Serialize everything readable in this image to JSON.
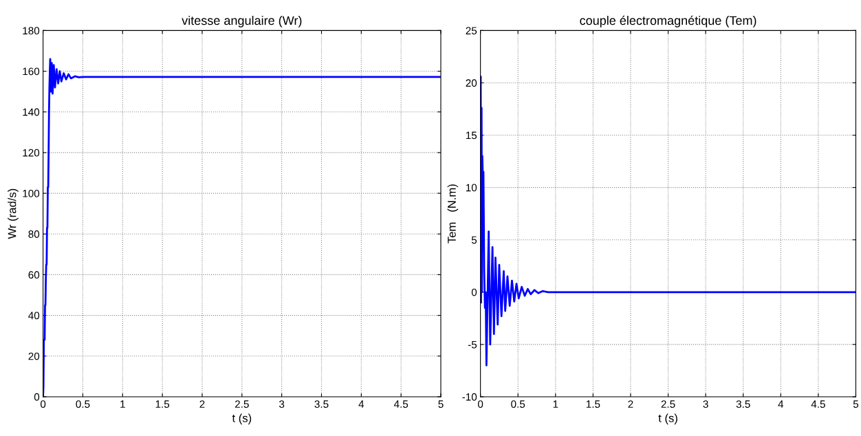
{
  "chart_data": [
    {
      "type": "line",
      "title": "vitesse angulaire (Wr)",
      "xlabel": "t (s)",
      "ylabel": "Wr (rad/s)",
      "xlim": [
        0,
        5
      ],
      "xticks": [
        0,
        0.5,
        1,
        1.5,
        2,
        2.5,
        3,
        3.5,
        4,
        4.5,
        5
      ],
      "ylim": [
        0,
        180
      ],
      "yticks": [
        0,
        20,
        40,
        60,
        80,
        100,
        120,
        140,
        160,
        180
      ],
      "grid": true,
      "legend": false,
      "series": [
        {
          "color": "#0000ff",
          "x": [
            0,
            0.005,
            0.01,
            0.02,
            0.025,
            0.03,
            0.035,
            0.04,
            0.045,
            0.05,
            0.055,
            0.06,
            0.065,
            0.07,
            0.075,
            0.08,
            0.085,
            0.09,
            0.1,
            0.11,
            0.12,
            0.135,
            0.15,
            0.17,
            0.19,
            0.21,
            0.23,
            0.26,
            0.29,
            0.32,
            0.35,
            0.4,
            0.45,
            0.5,
            5
          ],
          "values": [
            0,
            5,
            28,
            28,
            45,
            45,
            58,
            65,
            65,
            83,
            83,
            103,
            103,
            120,
            140,
            152,
            160,
            166,
            150,
            164,
            149,
            163,
            152,
            161,
            154,
            160,
            155,
            159,
            156,
            158.5,
            156.5,
            157.5,
            157,
            157.2,
            157.2
          ]
        }
      ]
    },
    {
      "type": "line",
      "title": "couple électromagnétique (Tem)",
      "xlabel": "t (s)",
      "ylabel": "Tem   (N.m)",
      "xlim": [
        0,
        5
      ],
      "xticks": [
        0,
        0.5,
        1,
        1.5,
        2,
        2.5,
        3,
        3.5,
        4,
        4.5,
        5
      ],
      "ylim": [
        -10,
        25
      ],
      "yticks": [
        -10,
        -5,
        0,
        5,
        10,
        15,
        20,
        25
      ],
      "grid": true,
      "legend": false,
      "series": [
        {
          "color": "#0000ff",
          "x": [
            0,
            0.004,
            0.008,
            0.015,
            0.02,
            0.025,
            0.03,
            0.04,
            0.05,
            0.06,
            0.07,
            0.08,
            0.11,
            0.13,
            0.16,
            0.18,
            0.2,
            0.23,
            0.25,
            0.28,
            0.31,
            0.33,
            0.36,
            0.39,
            0.42,
            0.45,
            0.48,
            0.51,
            0.55,
            0.59,
            0.63,
            0.67,
            0.72,
            0.77,
            0.83,
            0.9,
            5
          ],
          "values": [
            0,
            20.6,
            -1,
            17.6,
            0,
            13,
            11.5,
            11.5,
            2,
            -1.5,
            0,
            -7,
            5.8,
            -5,
            4.3,
            -4,
            3.3,
            -3.1,
            2.6,
            -2.3,
            2,
            -1.8,
            1.5,
            -1.3,
            1.1,
            -0.9,
            0.8,
            -0.6,
            0.5,
            -0.35,
            0.3,
            -0.2,
            0.2,
            -0.1,
            0.1,
            0,
            0
          ]
        }
      ]
    }
  ]
}
